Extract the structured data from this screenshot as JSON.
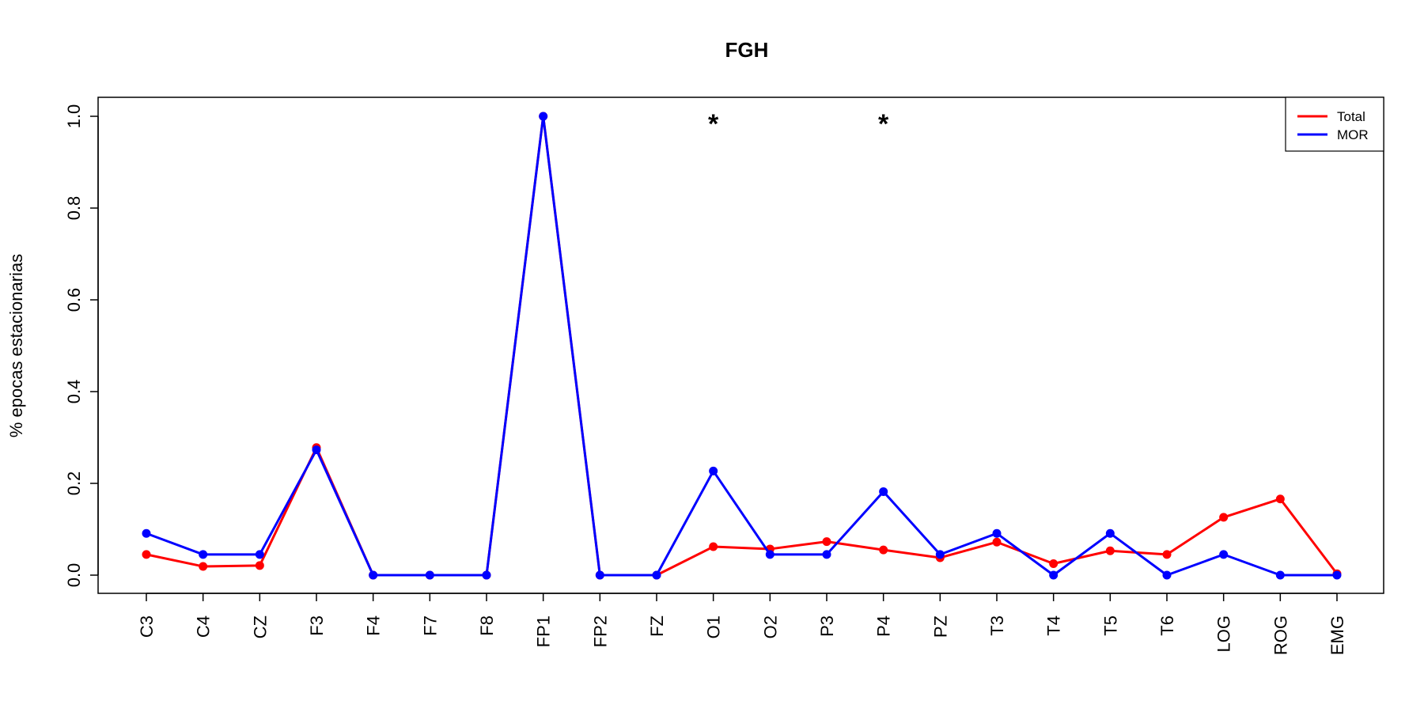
{
  "chart_data": {
    "type": "line",
    "title": "FGH",
    "xlabel": "",
    "ylabel": "% epocas estacionarias",
    "categories": [
      "C3",
      "C4",
      "CZ",
      "F3",
      "F4",
      "F7",
      "F8",
      "FP1",
      "FP2",
      "FZ",
      "O1",
      "O2",
      "P3",
      "P4",
      "PZ",
      "T3",
      "T4",
      "T5",
      "T6",
      "LOG",
      "ROG",
      "EMG"
    ],
    "ylim": [
      0,
      1
    ],
    "yticks": [
      0.0,
      0.2,
      0.4,
      0.6,
      0.8,
      1.0
    ],
    "ytick_labels": [
      "0.0",
      "0.2",
      "0.4",
      "0.6",
      "0.8",
      "1.0"
    ],
    "grid": false,
    "legend_position": "top-right",
    "series": [
      {
        "name": "Total",
        "color": "#ff0000",
        "values": [
          0.045,
          0.019,
          0.021,
          0.278,
          0.0,
          0.0,
          0.0,
          1.0,
          0.0,
          0.0,
          0.062,
          0.057,
          0.073,
          0.055,
          0.038,
          0.072,
          0.025,
          0.053,
          0.045,
          0.126,
          0.166,
          0.003
        ]
      },
      {
        "name": "MOR",
        "color": "#0000ff",
        "values": [
          0.091,
          0.045,
          0.045,
          0.273,
          0.0,
          0.0,
          0.0,
          1.0,
          0.0,
          0.0,
          0.227,
          0.045,
          0.045,
          0.182,
          0.045,
          0.091,
          0.0,
          0.091,
          0.0,
          0.045,
          0.0,
          0.0
        ]
      }
    ],
    "annotations": [
      {
        "category": "O1",
        "text": "*"
      },
      {
        "category": "P4",
        "text": "*"
      }
    ]
  }
}
